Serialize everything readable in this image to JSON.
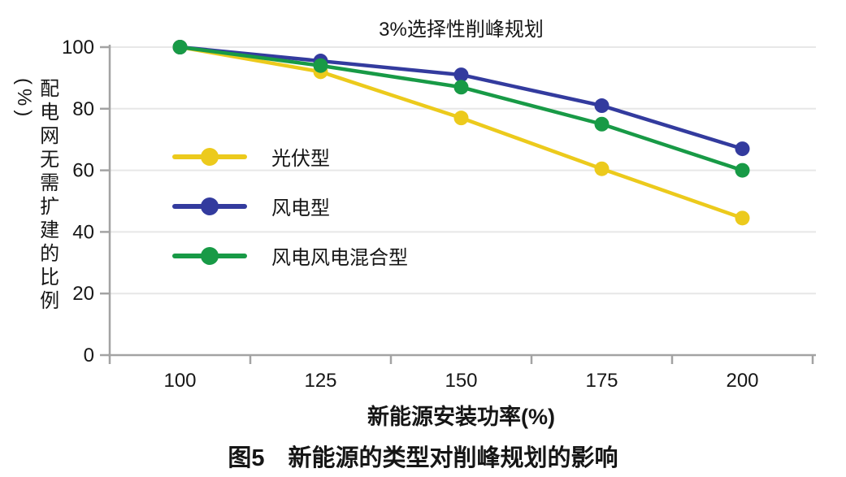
{
  "caption": "图5　新能源的类型对削峰规划的影响",
  "chart_data": {
    "type": "line",
    "title": "3%选择性削峰规划",
    "xlabel": "新能源安装功率(%)",
    "ylabel": "配电网无需扩建的比例(%)",
    "categories": [
      "100",
      "125",
      "150",
      "175",
      "200"
    ],
    "series": [
      {
        "name": "光伏型",
        "color": "#ecca1c",
        "values": [
          100,
          92,
          77,
          60.5,
          44.5
        ]
      },
      {
        "name": "风电型",
        "color": "#333b9e",
        "values": [
          100,
          95.5,
          91,
          81,
          67
        ]
      },
      {
        "name": "风电风电混合型",
        "color": "#189a46",
        "values": [
          100,
          94,
          87,
          75,
          60
        ]
      }
    ],
    "ylim": [
      0,
      100
    ],
    "yticks": [
      0,
      20,
      40,
      60,
      80,
      100
    ],
    "grid": "horizontal",
    "legend_position": "inside-left",
    "marker": "circle",
    "colors": {
      "axis": "#a3a3a3",
      "grid": "#e7e7e7",
      "text": "#161616"
    }
  }
}
